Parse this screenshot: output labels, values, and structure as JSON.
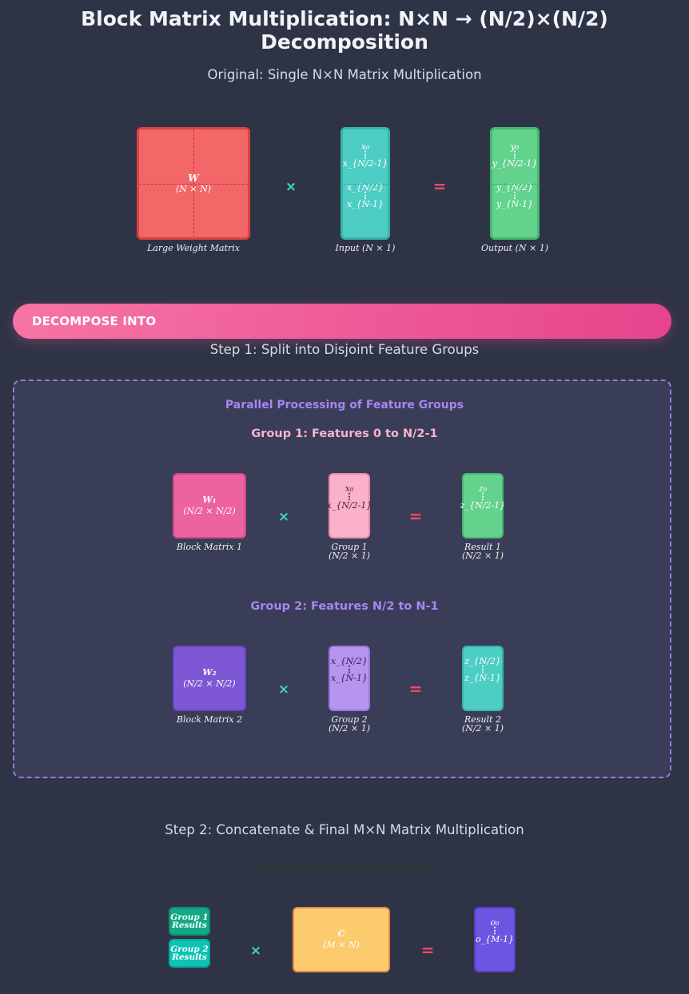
{
  "title": "Block Matrix Multiplication: N×N → (N/2)×(N/2) Decomposition",
  "original": {
    "heading": "Original: Single N×N Matrix Multiplication",
    "weight": {
      "line1": "W",
      "line2": "(N × N)",
      "caption": "Large Weight Matrix"
    },
    "input": {
      "top": [
        "x₀",
        "x_{N/2-1}"
      ],
      "bottom": [
        "x_{N/2}",
        "x_{N-1}"
      ],
      "caption": "Input (N × 1)"
    },
    "output": {
      "top": [
        "y₀",
        "y_{N/2-1}"
      ],
      "bottom": [
        "y_{N/2}",
        "y_{N-1}"
      ],
      "caption": "Output (N × 1)"
    },
    "times": "×",
    "equals": "="
  },
  "banner": {
    "label": "DECOMPOSE INTO"
  },
  "step1": {
    "heading": "Step 1: Split into Disjoint Feature Groups",
    "panel_title": "Parallel Processing of Feature Groups",
    "group1": {
      "heading": "Group 1: Features 0 to N/2-1",
      "matrix": {
        "line1": "W₁",
        "line2": "(N/2 × N/2)",
        "caption": "Block Matrix 1"
      },
      "vector": {
        "top": "x₀",
        "bottom": "x_{N/2-1}",
        "caption1": "Group 1",
        "caption2": "(N/2 × 1)"
      },
      "result": {
        "top": "z₀",
        "bottom": "z_{N/2-1}",
        "caption1": "Result 1",
        "caption2": "(N/2 × 1)"
      }
    },
    "group2": {
      "heading": "Group 2: Features N/2 to N-1",
      "matrix": {
        "line1": "W₂",
        "line2": "(N/2 × N/2)",
        "caption": "Block Matrix 2"
      },
      "vector": {
        "top": "x_{N/2}",
        "bottom": "x_{N-1}",
        "caption1": "Group 2",
        "caption2": "(N/2 × 1)"
      },
      "result": {
        "top": "z_{N/2}",
        "bottom": "z_{N-1}",
        "caption1": "Result 2",
        "caption2": "(N/2 × 1)"
      }
    }
  },
  "step2": {
    "heading": "Step 2: Concatenate & Final M×N Matrix Multiplication",
    "sub_heading": "Concatenate Disjoint Results",
    "group1_results": {
      "line1": "Group 1",
      "line2": "Results"
    },
    "group2_results": {
      "line1": "Group 2",
      "line2": "Results"
    },
    "matrix": {
      "line1": "C",
      "line2": "(M × N)"
    },
    "output": {
      "top": "o₀",
      "bottom": "o_{M-1}"
    }
  },
  "vdots": "⋮",
  "colors": {
    "background": "#2e3445",
    "weight": "#f26767",
    "input": "#4ecdc4",
    "output": "#62d28d",
    "block1": "#ec639f",
    "group1_vec": "#fbb1c9",
    "block2": "#7e58d4",
    "group2_vec": "#b694f0",
    "concat": "#fccb6d",
    "final_output": "#6c55e0"
  }
}
